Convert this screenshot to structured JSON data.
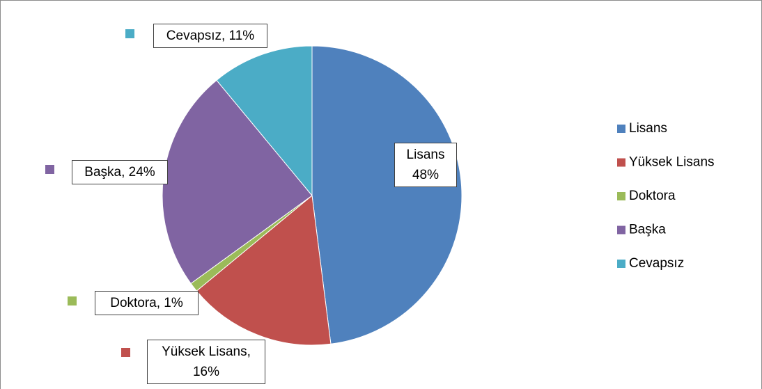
{
  "chart_data": {
    "type": "pie",
    "categories": [
      "Lisans",
      "Yüksek Lisans",
      "Doktora",
      "Başka",
      "Cevapsız"
    ],
    "values": [
      48,
      16,
      1,
      24,
      11
    ],
    "value_labels": [
      "Lisans\n48%",
      "Yüksek Lisans,\n16%",
      "Doktora, 1%",
      "Başka, 24%",
      "Cevapsız, 11%"
    ],
    "colors": [
      "#4f81bd",
      "#c0504d",
      "#9bbb59",
      "#8064a2",
      "#4bacc6"
    ],
    "legend": "right"
  }
}
